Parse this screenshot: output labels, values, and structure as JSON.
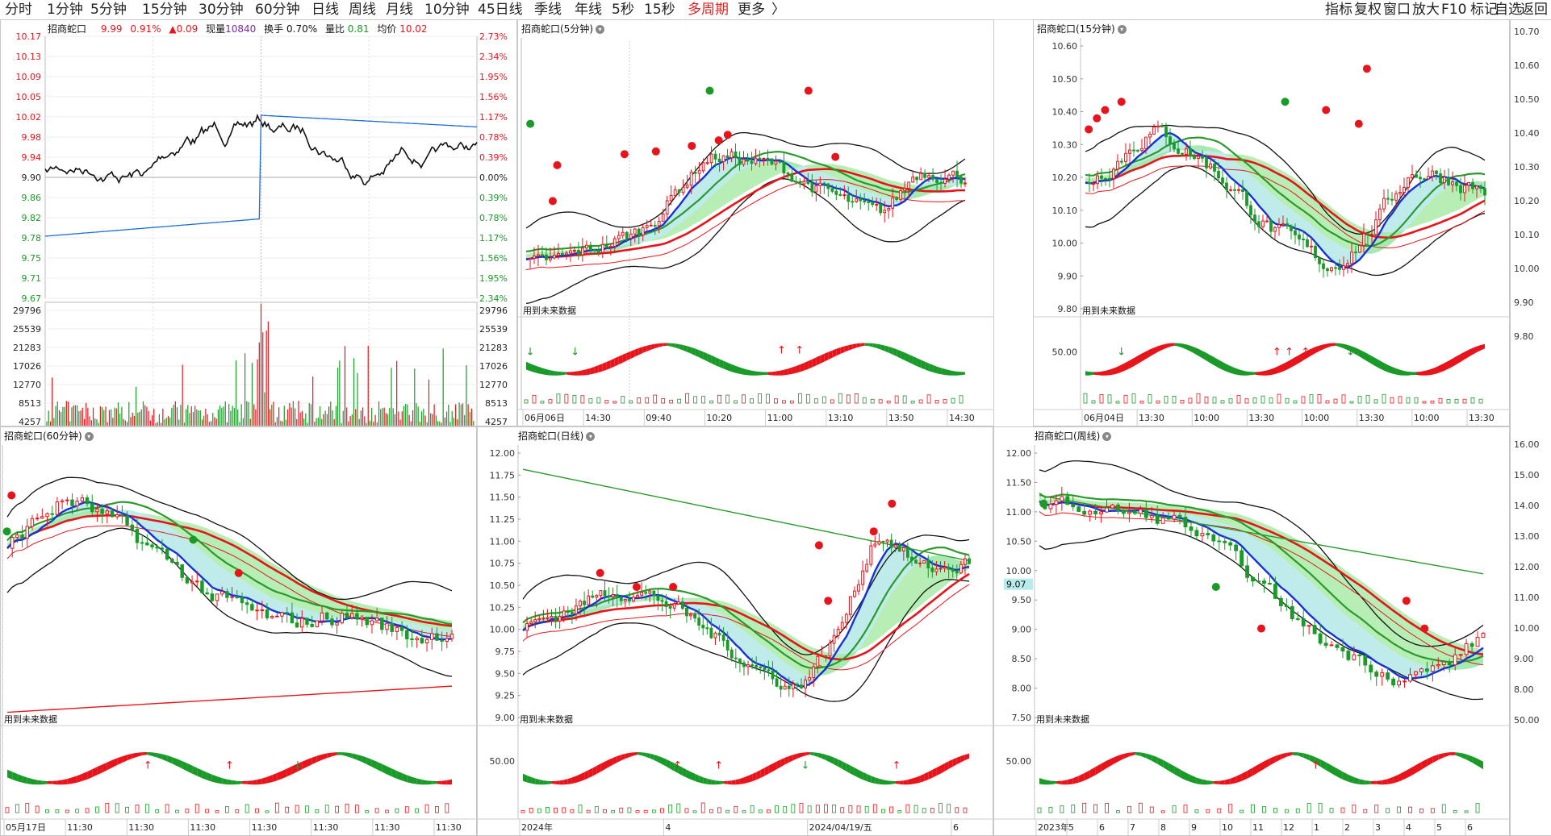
{
  "menubar": {
    "items": [
      "分时",
      "1分钟",
      "5分钟",
      "15分钟",
      "30分钟",
      "60分钟",
      "日线",
      "周线",
      "月线",
      "10分钟",
      "45日线",
      "季线",
      "年线",
      "5秒",
      "15秒",
      "多周期",
      "更多"
    ],
    "active": "多周期",
    "more_arrow": "〉",
    "right_items": [
      "指标",
      "复权",
      "窗口",
      "放大",
      "F10",
      "标记",
      "自选",
      "返回"
    ]
  },
  "intraday": {
    "title": "招商蛇口",
    "price": "9.99",
    "pct": "0.91%",
    "change": "▲0.09",
    "vol_label": "现量",
    "vol": "10840",
    "turnover_label": "换手",
    "turnover": "0.70%",
    "ratio_label": "量比",
    "ratio": "0.81",
    "avg_label": "均价",
    "avg": "10.02",
    "price_ticks": [
      "10.17",
      "10.13",
      "10.09",
      "10.05",
      "10.02",
      "9.98",
      "9.94",
      "9.90",
      "9.86",
      "9.82",
      "9.78",
      "9.75",
      "9.71",
      "9.67"
    ],
    "pct_ticks": [
      "2.73%",
      "2.34%",
      "1.95%",
      "1.56%",
      "1.17%",
      "0.78%",
      "0.39%",
      "0.00%",
      "0.39%",
      "0.78%",
      "1.17%",
      "1.56%",
      "1.95%",
      "2.34%"
    ],
    "vol_ticks": [
      "29796",
      "25539",
      "21283",
      "17026",
      "12770",
      "8513",
      "4257"
    ]
  },
  "panels": [
    {
      "key": "m5",
      "title": "招商蛇口(5分钟)",
      "y_ticks": [],
      "future": "用到未来数据",
      "osc_tick": "",
      "dates": [
        "06月06日",
        "14:30",
        "09:40",
        "10:20",
        "11:00",
        "13:10",
        "13:50",
        "14:30"
      ]
    },
    {
      "key": "m15",
      "title": "招商蛇口(15分钟)",
      "y_ticks": [
        "10.60",
        "10.50",
        "10.40",
        "10.30",
        "10.20",
        "10.10",
        "10.00",
        "9.90",
        "9.80"
      ],
      "future": "用到未来数据",
      "osc_tick": "50.00",
      "dates": [
        "06月04日",
        "13:30",
        "10:00",
        "13:30",
        "10:00",
        "13:30",
        "10:00",
        "13:30"
      ]
    },
    {
      "key": "m60",
      "title": "招商蛇口(60分钟)",
      "y_ticks": [],
      "future": "用到未来数据",
      "osc_tick": "",
      "dates": [
        "05月17日",
        "11:30",
        "11:30",
        "11:30",
        "11:30",
        "11:30",
        "11:30",
        "11:30"
      ]
    },
    {
      "key": "day",
      "title": "招商蛇口(日线)",
      "y_ticks": [
        "12.00",
        "11.75",
        "11.50",
        "11.25",
        "11.00",
        "10.75",
        "10.50",
        "10.25",
        "10.00",
        "9.75",
        "9.50",
        "9.25",
        "9.00"
      ],
      "future": "用到未来数据",
      "osc_tick": "50.00",
      "dates": [
        "2024年",
        "4",
        "2024/04/19/五",
        "6"
      ]
    },
    {
      "key": "week",
      "title": "招商蛇口(周线)",
      "y_ticks": [
        "12.00",
        "11.50",
        "11.00",
        "10.50",
        "10.00",
        "9.50",
        "9.00",
        "8.50",
        "8.00",
        "7.50"
      ],
      "future": "用到未来数据",
      "osc_tick": "50.00",
      "dates": [
        "2023年",
        "5",
        "6",
        "7",
        "8",
        "9",
        "10",
        "11",
        "12",
        "1",
        "2",
        "3",
        "4",
        "5",
        "6"
      ],
      "cursor": "9.07"
    }
  ],
  "right_axis": {
    "top": [
      "10.70",
      "10.60",
      "10.50",
      "10.40",
      "10.30",
      "10.20",
      "10.10",
      "10.00",
      "9.90",
      "9.80"
    ],
    "bottom": [
      "16.00",
      "15.00",
      "14.00",
      "13.00",
      "12.00",
      "11.00",
      "10.00",
      "9.00",
      "8.00",
      "50.00"
    ]
  },
  "colors": {
    "up": "#e8141b",
    "down": "#1a9a28",
    "blue": "#1432d8",
    "cyan": "#b0e8e8",
    "green_fill": "#9ee89e"
  }
}
